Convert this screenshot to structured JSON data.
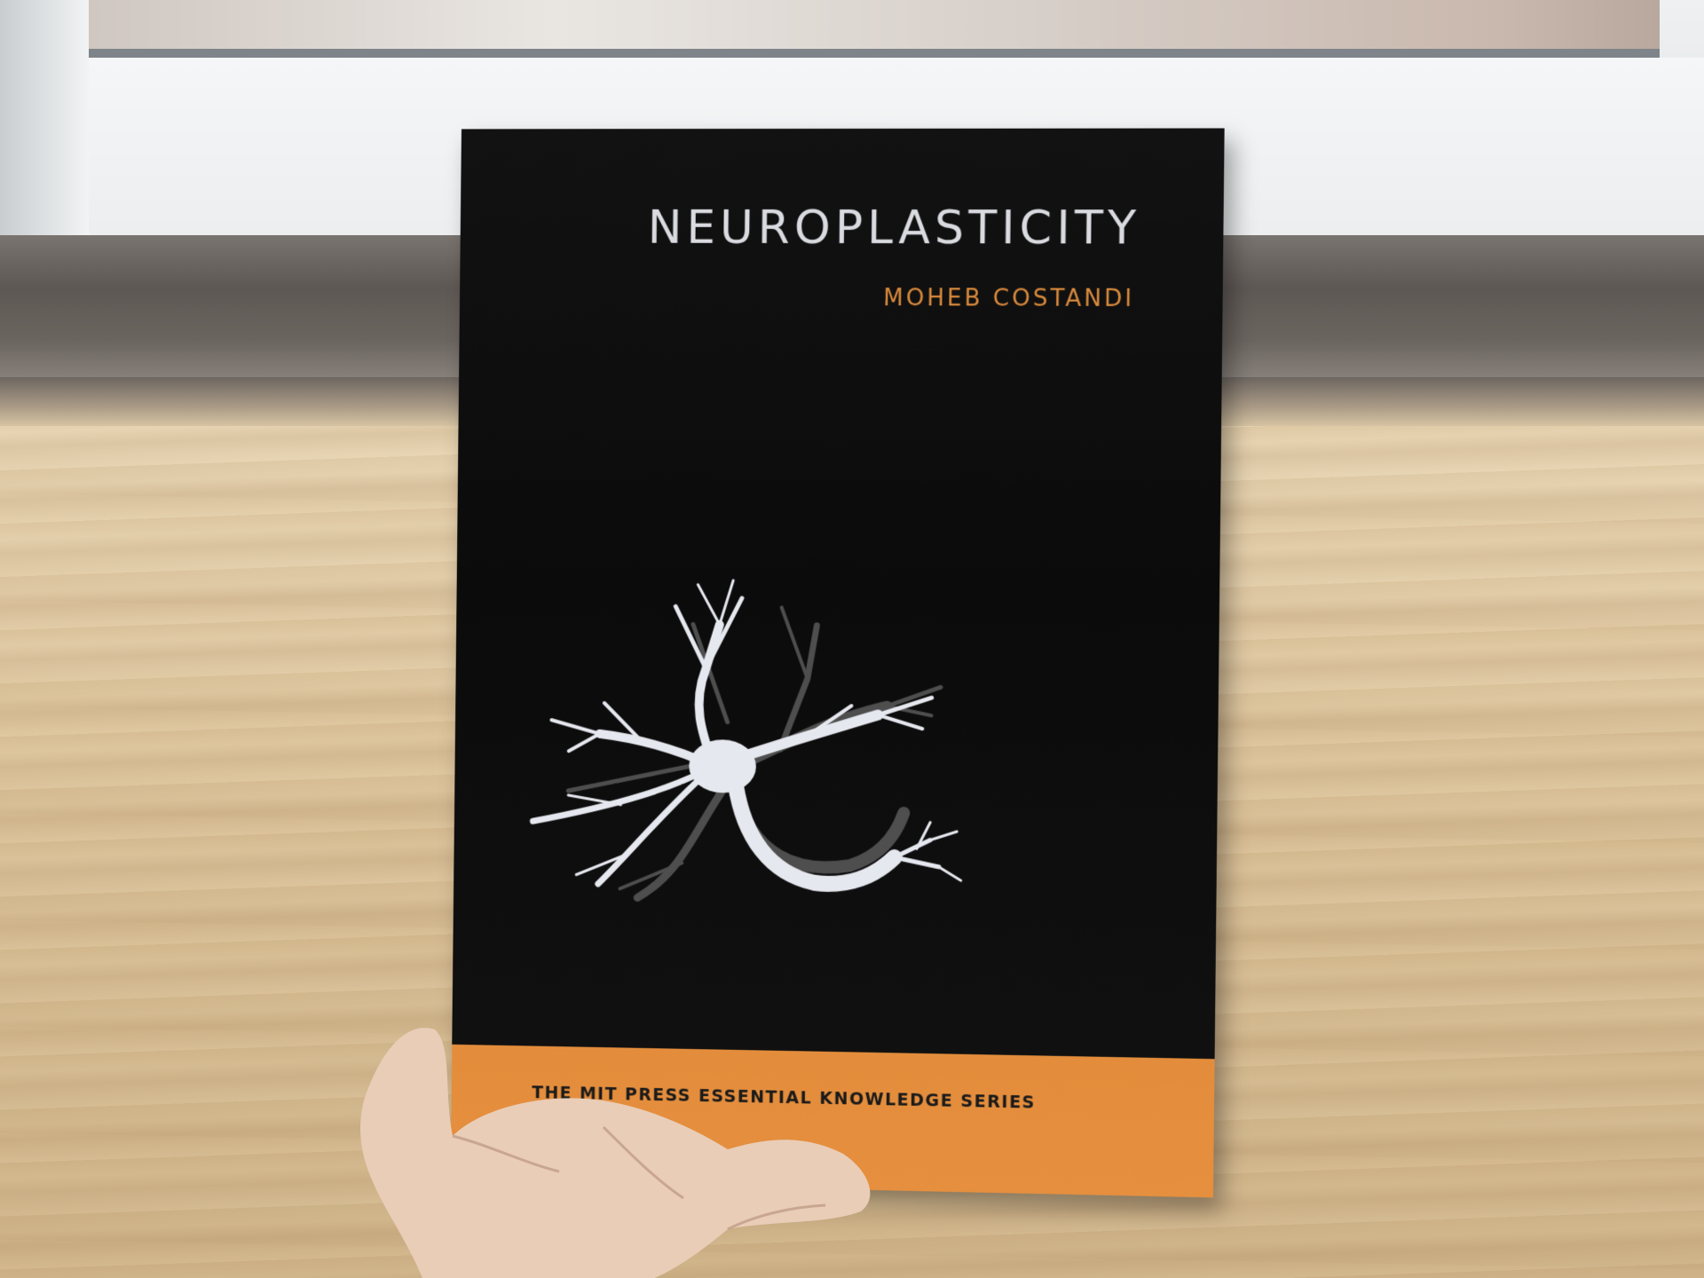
{
  "book": {
    "title": "NEUROPLASTICITY",
    "author": "MOHEB COSTANDI",
    "series": "THE MIT PRESS ESSENTIAL KNOWLEDGE SERIES"
  },
  "colors": {
    "cover_black": "#0e0e0e",
    "band_orange": "#e58f3f",
    "title_color": "#d9dbe0",
    "author_color": "#d98a3c",
    "wood": "#dcc49c"
  },
  "icons": {
    "cover_art": "neuron-illustration"
  }
}
